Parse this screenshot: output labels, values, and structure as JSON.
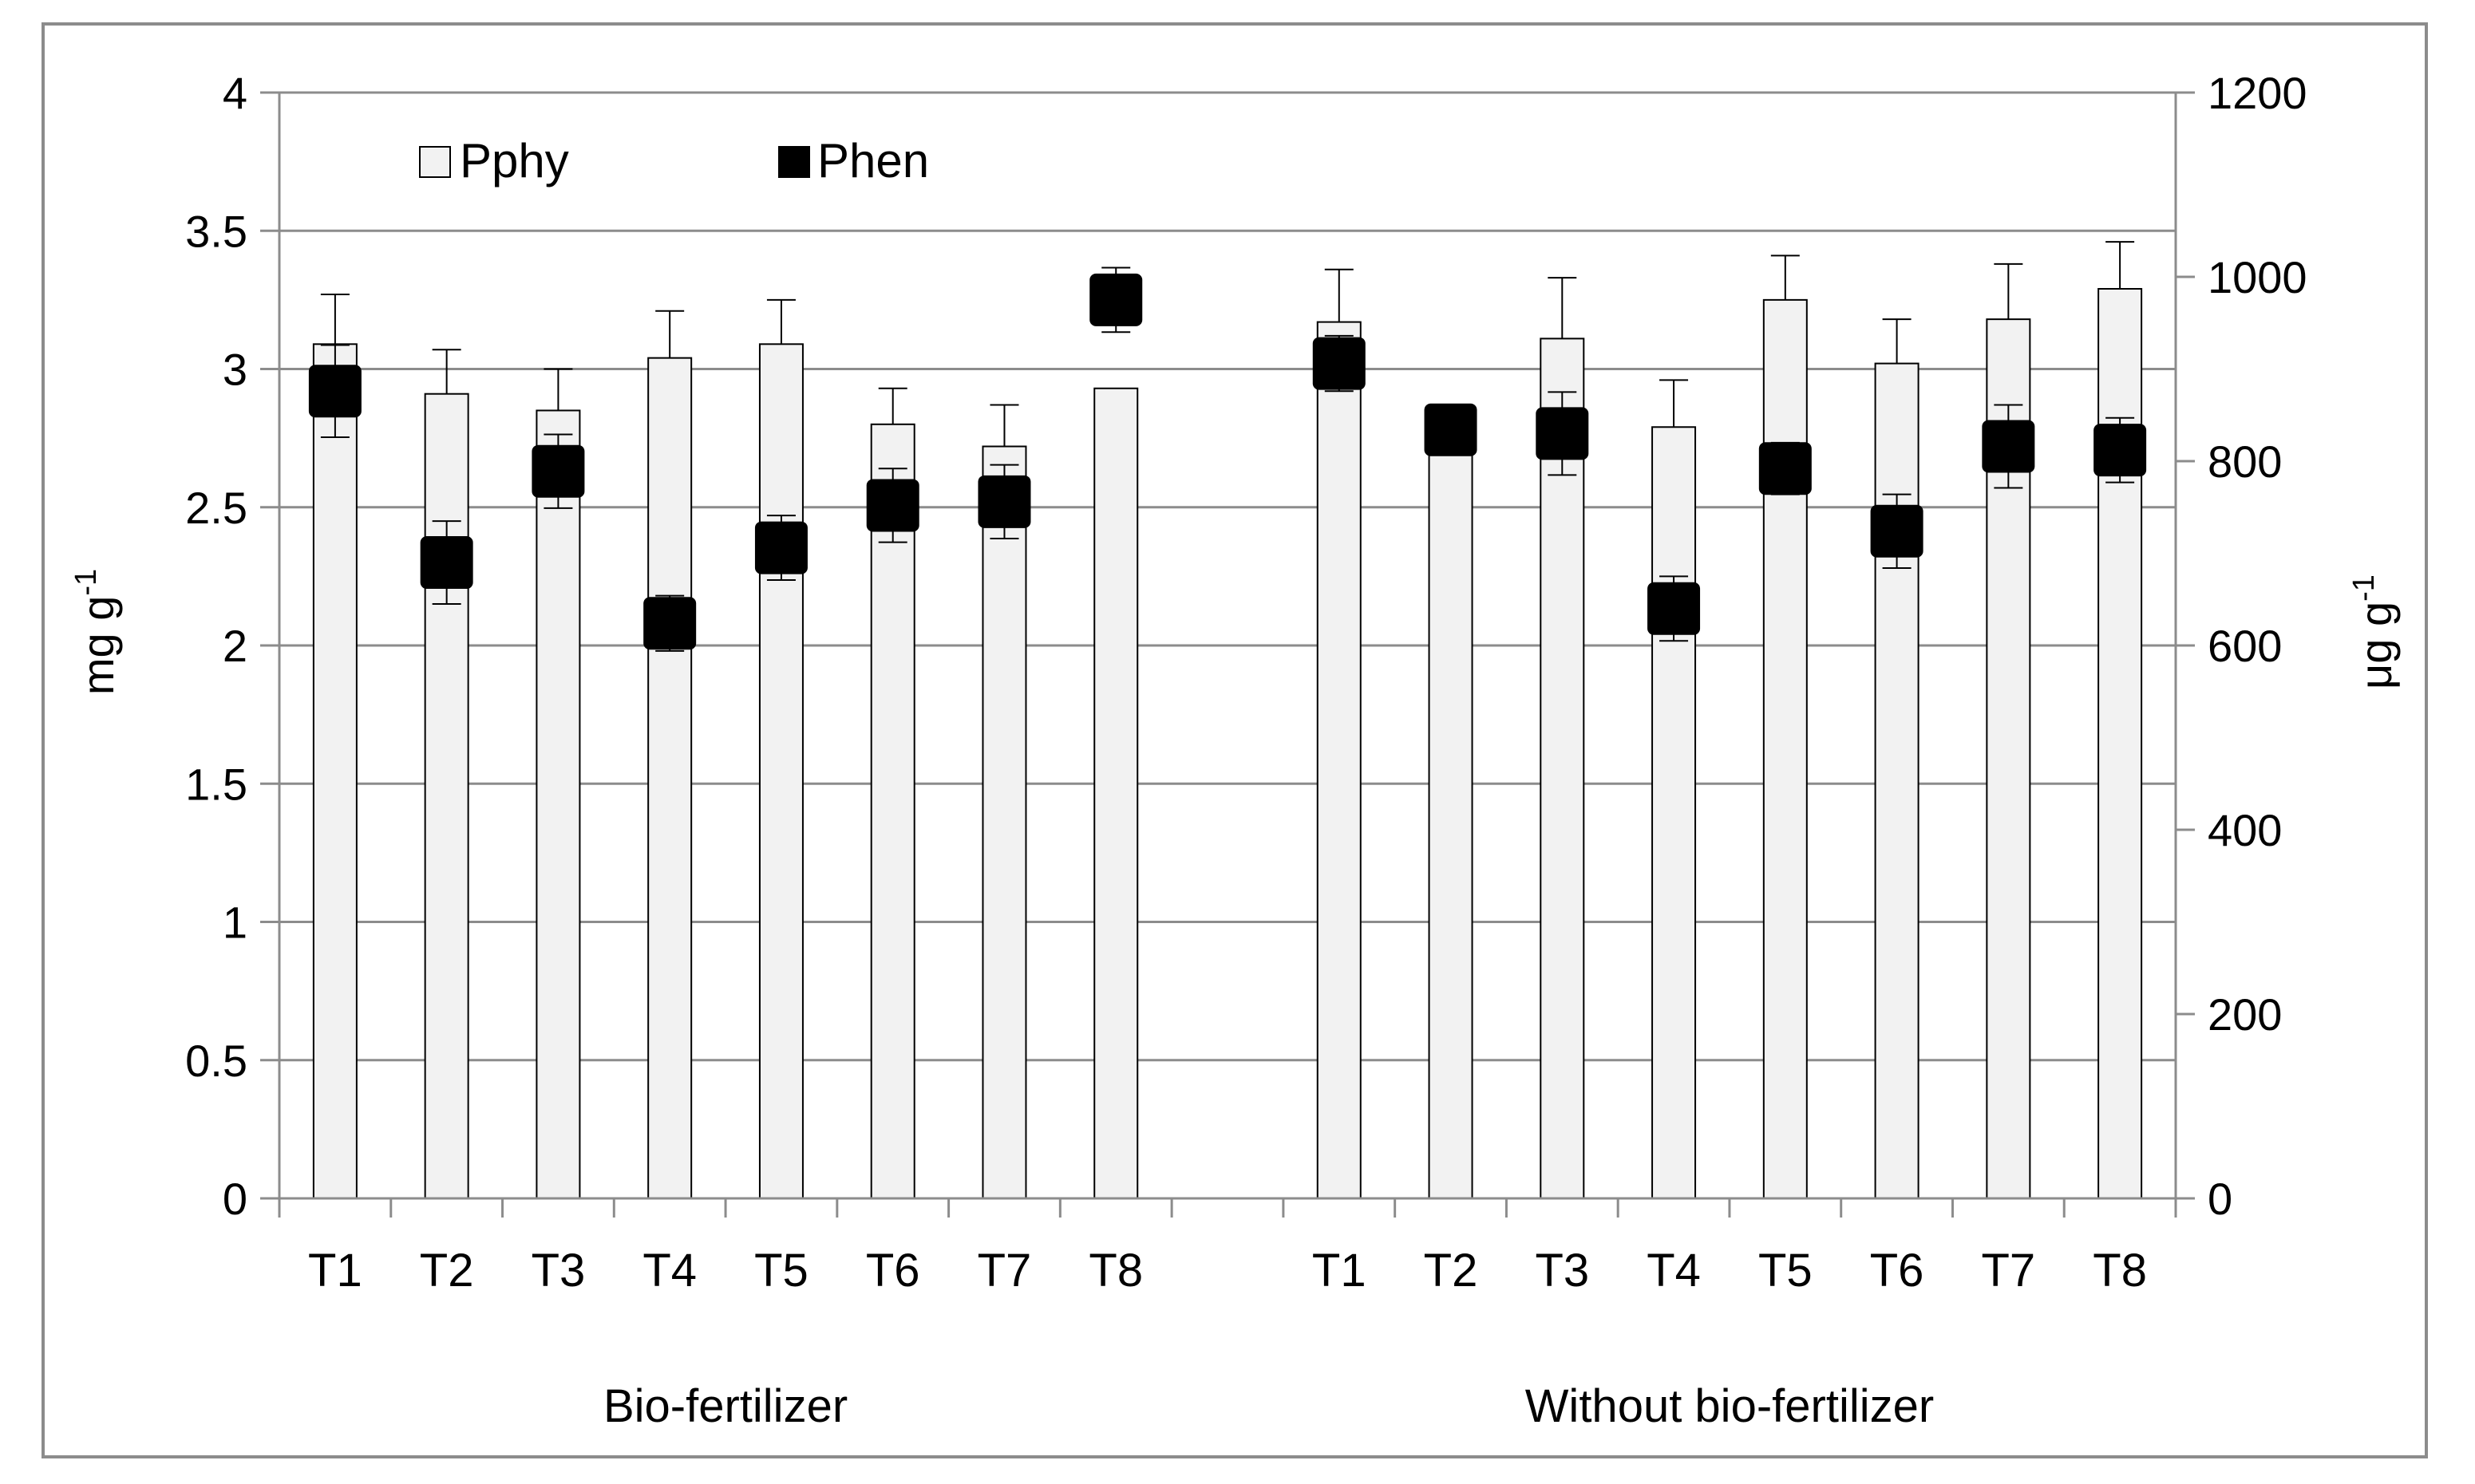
{
  "chart_data": {
    "type": "bar",
    "title": "",
    "groups": [
      "Bio-fertilizer",
      "Without bio-fertilizer"
    ],
    "categories": [
      "T1",
      "T2",
      "T3",
      "T4",
      "T5",
      "T6",
      "T7",
      "T8"
    ],
    "ylabel_left_main": "mg g",
    "ylabel_left_sup": "-1",
    "ylabel_right_main": "μg g",
    "ylabel_right_sup": "-1",
    "ylim_left": [
      0,
      4
    ],
    "ylim_right": [
      0,
      1200
    ],
    "yticks_left": [
      "0",
      "0.5",
      "1",
      "1.5",
      "2",
      "2.5",
      "3",
      "3.5",
      "4"
    ],
    "yticks_right": [
      "0",
      "200",
      "400",
      "600",
      "800",
      "1000",
      "1200"
    ],
    "grid": true,
    "legend": [
      {
        "name": "Pphy",
        "swatch": "#f2f2f2"
      },
      {
        "name": "Phen",
        "swatch": "#000000"
      }
    ],
    "series": [
      {
        "name": "Pphy",
        "kind": "bar",
        "axis": "left",
        "values": [
          [
            3.09,
            2.91,
            2.85,
            3.04,
            3.09,
            2.8,
            2.72,
            2.93
          ],
          [
            3.17,
            2.79,
            3.11,
            2.79,
            3.25,
            3.02,
            3.18,
            3.29
          ]
        ],
        "errors": [
          [
            0.18,
            0.16,
            0.15,
            0.17,
            0.16,
            0.13,
            0.15,
            0.0
          ],
          [
            0.19,
            0.0,
            0.22,
            0.17,
            0.16,
            0.16,
            0.2,
            0.17
          ]
        ]
      },
      {
        "name": "Phen",
        "kind": "marker",
        "axis": "right",
        "values": [
          [
            876,
            690,
            789,
            624,
            706,
            752,
            756,
            975
          ],
          [
            906,
            834,
            830,
            640,
            792,
            724,
            816,
            812
          ]
        ],
        "errors": [
          [
            50,
            45,
            40,
            30,
            35,
            40,
            40,
            35
          ],
          [
            30,
            25,
            45,
            35,
            28,
            40,
            45,
            35
          ]
        ]
      }
    ],
    "colors": {
      "bar_fill": "#f2f2f2",
      "bar_stroke": "#000000",
      "marker": "#000000",
      "grid": "#8c8c8c",
      "axis": "#8c8c8c",
      "frame": "#8c8c8c"
    }
  }
}
